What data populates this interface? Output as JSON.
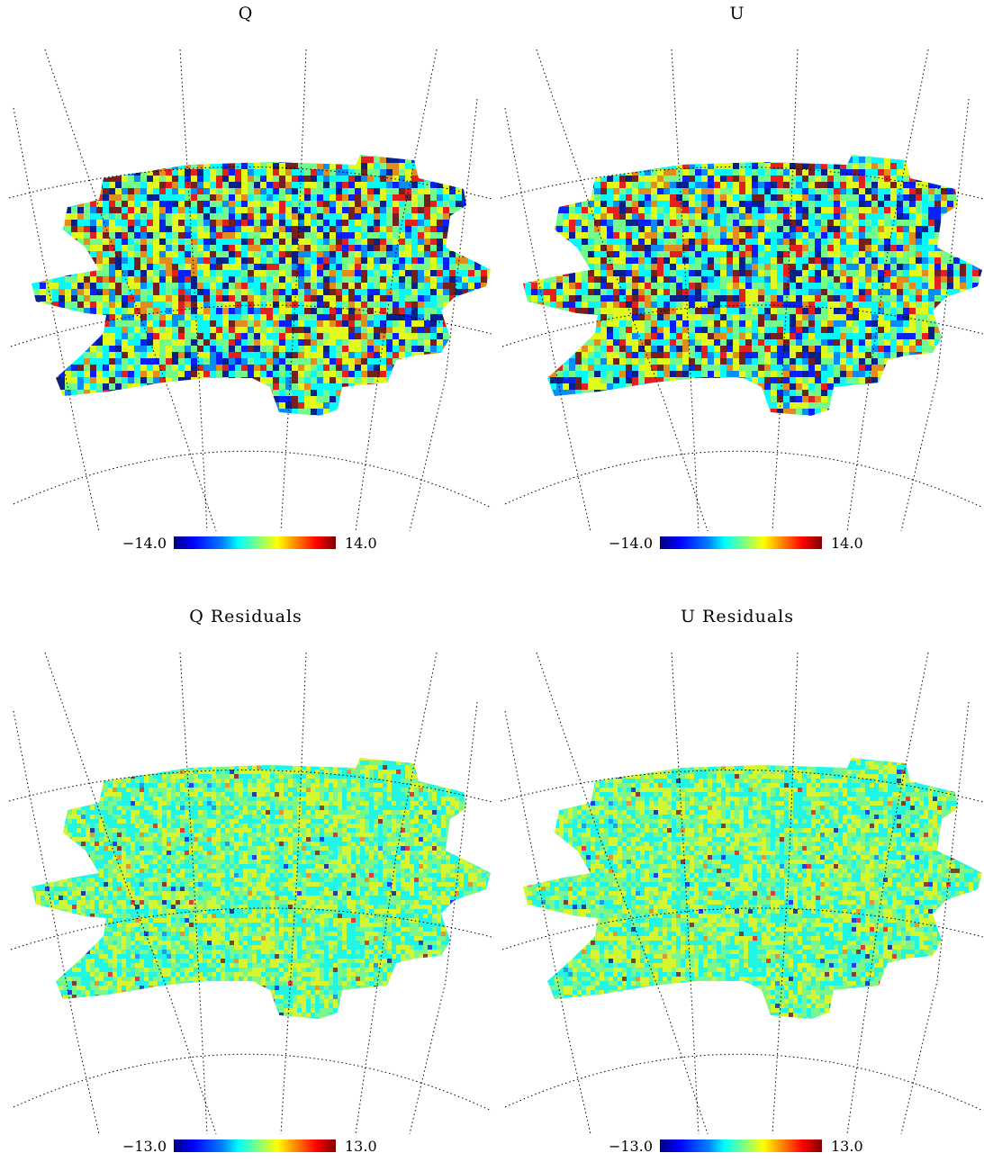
{
  "panels": [
    {
      "title": "Q",
      "cb_min": "−14.0",
      "cb_max": "14.0",
      "noise": "signal"
    },
    {
      "title": "U",
      "cb_min": "−14.0",
      "cb_max": "14.0",
      "noise": "signal"
    },
    {
      "title": "Q Residuals",
      "cb_min": "−13.0",
      "cb_max": "13.0",
      "noise": "residual"
    },
    {
      "title": "U Residuals",
      "cb_min": "−13.0",
      "cb_max": "13.0",
      "noise": "residual"
    }
  ],
  "colormap": [
    "#00007f",
    "#0000ff",
    "#007fff",
    "#00ffff",
    "#7fff7f",
    "#ffff00",
    "#ff7f00",
    "#ff0000",
    "#7f0000"
  ]
}
